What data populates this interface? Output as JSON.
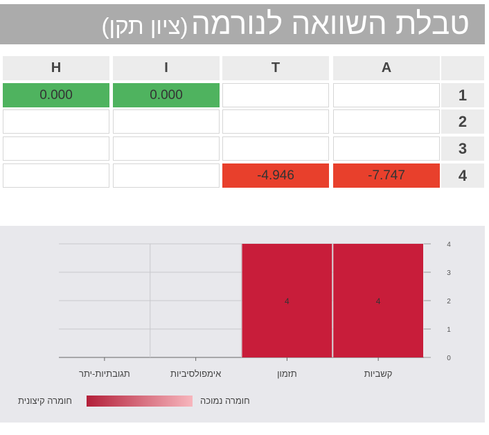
{
  "title": {
    "main": "טבלת השוואה לנורמה",
    "sub": "(ציון תקן)"
  },
  "table": {
    "columns": [
      "A",
      "T",
      "I",
      "H"
    ],
    "rows": [
      {
        "label": "1",
        "cells": [
          "",
          "",
          "0.000",
          "0.000"
        ],
        "status": [
          "none",
          "none",
          "green",
          "green"
        ]
      },
      {
        "label": "2",
        "cells": [
          "",
          "",
          "",
          ""
        ],
        "status": [
          "none",
          "none",
          "none",
          "none"
        ]
      },
      {
        "label": "3",
        "cells": [
          "",
          "",
          "",
          ""
        ],
        "status": [
          "none",
          "none",
          "none",
          "none"
        ]
      },
      {
        "label": "4",
        "cells": [
          "-7.747",
          "-4.946",
          "",
          ""
        ],
        "status": [
          "red",
          "red",
          "none",
          "none"
        ]
      }
    ],
    "colors": {
      "green": "#4fb35f",
      "red": "#e8402c"
    }
  },
  "chart_data": {
    "type": "bar",
    "categories": [
      "קשביות",
      "תזמון",
      "אימפולסיביות",
      "תגובתיות-יתר"
    ],
    "values": [
      4,
      4,
      0,
      0
    ],
    "data_labels": [
      "4",
      "4",
      "",
      ""
    ],
    "ylim": [
      0,
      4
    ],
    "yticks": [
      "0",
      "1",
      "2",
      "3",
      "4"
    ],
    "y_axis_side": "right",
    "grid": true,
    "bar_color": "#c81d3a",
    "legend": {
      "left_label": "חומרה קיצונית",
      "right_label": "חומרה נמוכה",
      "gradient": [
        "#b3203a",
        "#f7b6bd"
      ],
      "placement": "bottom-left"
    }
  }
}
